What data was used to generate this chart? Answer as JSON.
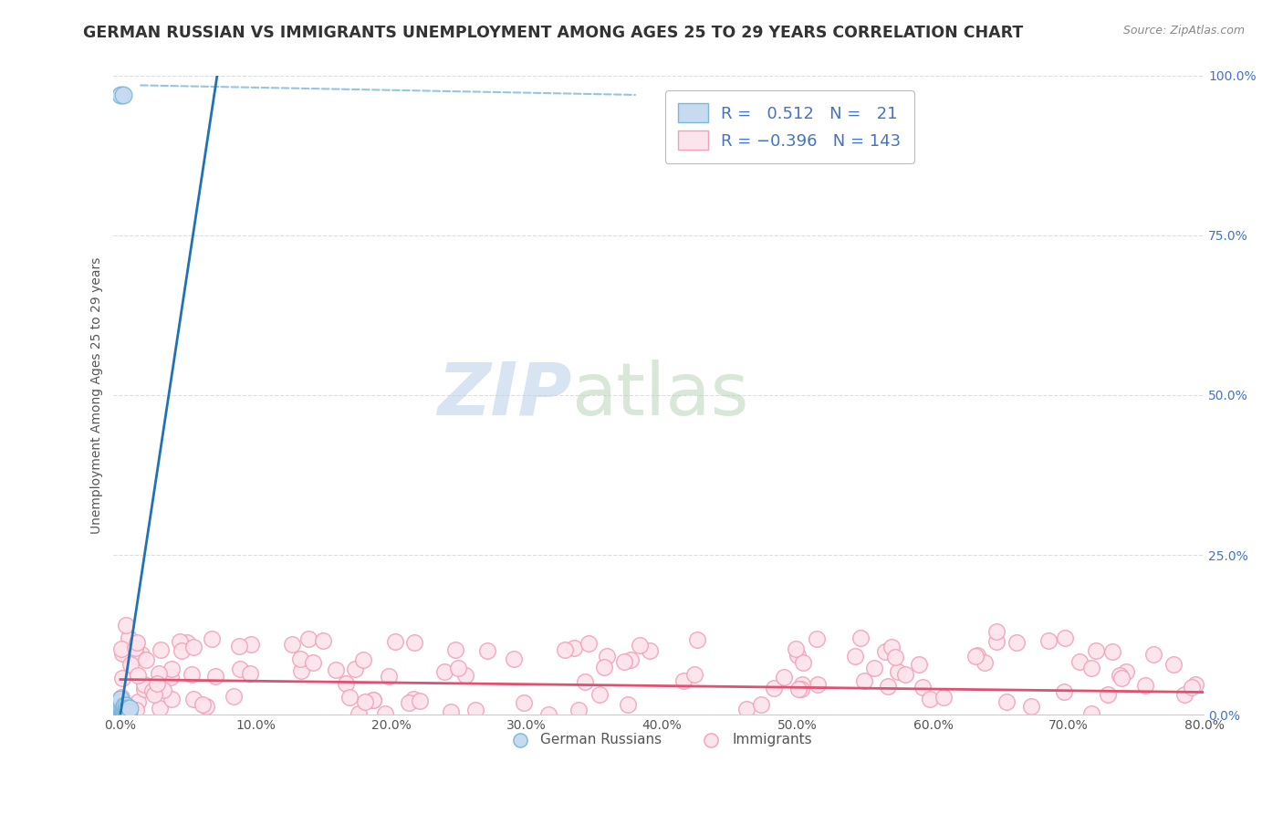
{
  "title": "GERMAN RUSSIAN VS IMMIGRANTS UNEMPLOYMENT AMONG AGES 25 TO 29 YEARS CORRELATION CHART",
  "source": "Source: ZipAtlas.com",
  "ylabel": "Unemployment Among Ages 25 to 29 years",
  "xlim": [
    -0.005,
    0.8
  ],
  "ylim": [
    0.0,
    1.0
  ],
  "xticks": [
    0.0,
    0.1,
    0.2,
    0.3,
    0.4,
    0.5,
    0.6,
    0.7,
    0.8
  ],
  "xticklabels": [
    "0.0%",
    "10.0%",
    "20.0%",
    "30.0%",
    "40.0%",
    "50.0%",
    "60.0%",
    "70.0%",
    "80.0%"
  ],
  "yticks": [
    0.0,
    0.25,
    0.5,
    0.75,
    1.0
  ],
  "yticklabels": [
    "0.0%",
    "25.0%",
    "50.0%",
    "75.0%",
    "100.0%"
  ],
  "blue_color": "#7ab8d9",
  "blue_fill": "#c6dbef",
  "pink_color": "#f4a0b5",
  "pink_fill": "#fce4ec",
  "line_blue": "#2171b5",
  "line_pink": "#e05070",
  "background": "#ffffff",
  "grid_color": "#dddddd",
  "gr_slope": 14.0,
  "gr_intercept": 0.0,
  "imm_slope": -0.025,
  "imm_intercept": 0.055
}
